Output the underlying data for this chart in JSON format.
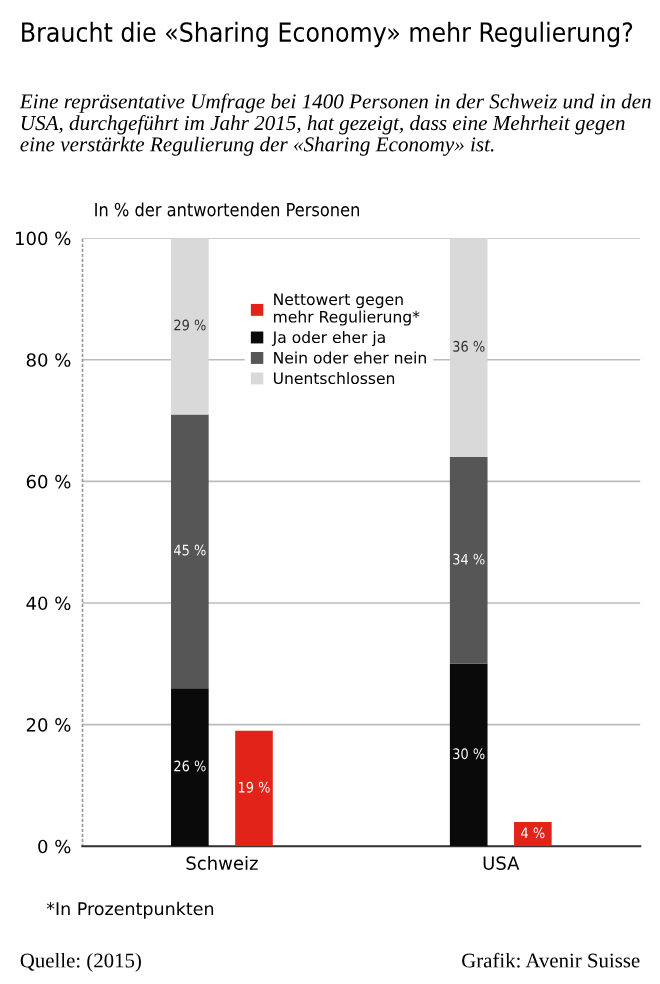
{
  "chart_data": {
    "type": "bar",
    "title": "Braucht die «Sharing Economy» mehr Regulierung?",
    "subtitle": "Eine repräsentative Umfrage bei 1400 Personen in der Schweiz und in den USA, durchgeführt im Jahr 2015, hat gezeigt, dass eine Mehrheit gegen eine verstärkte Regulierung der «Sharing Economy» ist.",
    "ylabel": "In % der antwortenden Personen",
    "categories": [
      "Schweiz",
      "USA"
    ],
    "series": [
      {
        "name": "Nettowert gegen\nmehr Regulierung*",
        "type": "bar",
        "color": "#e2231a",
        "values": [
          19,
          4
        ],
        "value_labels": [
          "19 %",
          "4 %"
        ]
      },
      {
        "name": "Ja oder eher ja",
        "color": "#0a0a0a",
        "values": [
          26,
          30
        ],
        "base": [
          0,
          0
        ],
        "value_labels": [
          "26 %",
          "30 %"
        ]
      },
      {
        "name": "Nein oder eher nein",
        "color": "#565656",
        "values": [
          45,
          34
        ],
        "base": [
          26,
          30
        ],
        "value_labels": [
          "45 %",
          "34 %"
        ]
      },
      {
        "name": "Unentschlossen",
        "color": "#d9d9d9",
        "values": [
          29,
          36
        ],
        "base": [
          71,
          64
        ],
        "value_labels": [
          "29 %",
          "36 %"
        ]
      }
    ],
    "ylim": [
      0,
      100
    ],
    "yticks": [
      {
        "value": 0,
        "label": "0 %"
      },
      {
        "value": 20,
        "label": "20 %"
      },
      {
        "value": 40,
        "label": "40 %"
      },
      {
        "value": 60,
        "label": "60 %"
      },
      {
        "value": 80,
        "label": "80 %"
      },
      {
        "value": 100,
        "label": "100 %"
      }
    ],
    "grid": "y",
    "legend": "top",
    "annotations": [
      "*In Prozentpunkten",
      "Quelle: (2015)",
      "Grafik: Avenir Suisse"
    ]
  }
}
